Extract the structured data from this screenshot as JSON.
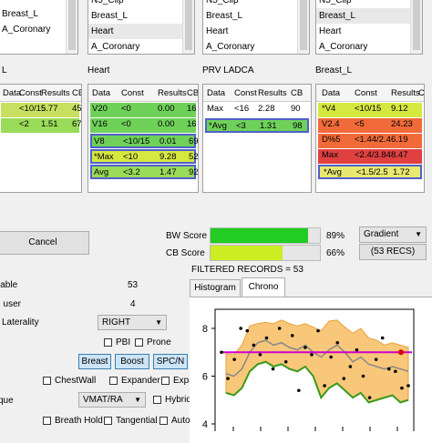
{
  "structure_lists": [
    {
      "items": [
        "Breast_L",
        "A_Coronary"
      ],
      "selected": -1
    },
    {
      "items": [
        "N5_Clip",
        "Breast_L",
        "Heart",
        "A_Coronary"
      ],
      "selected": 2
    },
    {
      "items": [
        "N5_Clip",
        "Breast_L",
        "Heart",
        "A_Coronary"
      ],
      "selected": -1
    },
    {
      "items": [
        "N5_Clip",
        "Breast_L",
        "Heart",
        "A_Coronary"
      ],
      "selected": 1
    }
  ],
  "panels": [
    {
      "title": "L",
      "headers": [
        "Data",
        "Const",
        "Results",
        "CB"
      ],
      "rows": [
        {
          "data": "",
          "const": "<10/15",
          "results": "5.77",
          "cb": "45",
          "color": "#c8e060"
        },
        {
          "data": "",
          "const": "<2",
          "results": "1.51",
          "cb": "67",
          "color": "#9adb5a"
        }
      ]
    },
    {
      "title": "Heart",
      "headers": [
        "Data",
        "Const",
        "Results",
        "CB"
      ],
      "rows": [
        {
          "data": "V20",
          "const": "<0",
          "results": "0.00",
          "cb": "16",
          "color": "#6fd15a"
        },
        {
          "data": "V16",
          "const": "<0",
          "results": "0.00",
          "cb": "16",
          "color": "#6fd15a"
        },
        {
          "data": "V8",
          "const": "<10/15",
          "results": "0.01",
          "cb": "69",
          "color": "#6fd15a"
        },
        {
          "data": "*Max",
          "const": "<10",
          "results": "9.28",
          "cb": "52",
          "color": "#d4e840"
        },
        {
          "data": "Avg",
          "const": "<3.2",
          "results": "1.47",
          "cb": "92",
          "color": "#9adb5a"
        }
      ]
    },
    {
      "title": "PRV LADCA",
      "headers": [
        "Data",
        "Const",
        "Results",
        "CB"
      ],
      "rows": [
        {
          "data": "Max",
          "const": "<16",
          "results": "2.28",
          "cb": "90",
          "color": "#ffffff"
        },
        {
          "data": "*Avg",
          "const": "<3",
          "results": "1.31",
          "cb": "98",
          "color": "#6fd15a"
        }
      ]
    },
    {
      "title": "Breast_L",
      "headers": [
        "Data",
        "Const",
        "Results",
        "CB"
      ],
      "rows": [
        {
          "data": "*V4",
          "const": "<10/15",
          "results": "9.12",
          "cb": "",
          "color": "#d4e840"
        },
        {
          "data": "V2.4",
          "const": "<5",
          "results": "24.23",
          "cb": "",
          "color": "#f06a3a"
        },
        {
          "data": "D%5",
          "const": "<1.44/2.4",
          "results": "6.19",
          "cb": "",
          "color": "#f06a3a"
        },
        {
          "data": "Max",
          "const": "<2.4/3.84",
          "results": "8.47",
          "cb": "",
          "color": "#e04040"
        },
        {
          "data": "*Avg",
          "const": "<1.5/2.5",
          "results": "1.72",
          "cb": "",
          "color": "#e8e870"
        }
      ]
    }
  ],
  "cancel_label": "Cancel",
  "scores": {
    "bw_label": "BW Score",
    "bw_value": "89%",
    "bw_fraction": 0.89,
    "bw_color": "#22cc22",
    "cb_label": "CB Score",
    "cb_value": "66%",
    "cb_fraction": 0.66,
    "cb_color": "#ccee22"
  },
  "color_mode": "Gradient",
  "recs_button": "(53 RECS)",
  "filtered_records": "FILTERED RECORDS = 53",
  "left_form": {
    "available_label": "lable",
    "available_value": "53",
    "user_label": ": user",
    "user_value": "4",
    "laterality_label": "Laterality",
    "laterality_value": "RIGHT",
    "pbi_label": "PBI",
    "prone_label": "Prone",
    "breast_label": "Breast",
    "boost_label": "Boost",
    "spcn_label": "SPC/N",
    "chestwall_label": "ChestWall",
    "expander_label": "Expander",
    "expa_label": "Expa",
    "technique_label": "que",
    "technique_value": "VMAT/RA",
    "hybrid_label": "Hybrid",
    "breathhold_label": "Breath Hold",
    "tangential_label": "Tangential",
    "autop_label": "Autop"
  },
  "tabs": [
    {
      "label": "Histogram",
      "active": false
    },
    {
      "label": "Chrono",
      "active": true
    }
  ],
  "chart_data": {
    "type": "line",
    "yticks": [
      "8",
      "6",
      "4"
    ],
    "ylim": [
      4,
      8.8
    ],
    "threshold": 7.0,
    "series": [
      {
        "key": "upper",
        "values": [
          6.95,
          6.9,
          7.3,
          8.1,
          8.2,
          8.25,
          8.2,
          8.35,
          8.2,
          8.1,
          8.2,
          8.05,
          7.9,
          8.3,
          8.35,
          8.05,
          7.8,
          8.0,
          7.6,
          7.5,
          7.3,
          7.4,
          7.3,
          7.2
        ]
      },
      {
        "key": "mean",
        "values": [
          6.1,
          6.0,
          6.3,
          7.0,
          7.4,
          7.5,
          7.3,
          7.4,
          7.2,
          7.1,
          7.3,
          7.0,
          6.8,
          7.1,
          7.3,
          7.0,
          6.6,
          6.8,
          6.5,
          6.4,
          6.3,
          6.4,
          6.3,
          6.2
        ]
      },
      {
        "key": "lower",
        "values": [
          5.3,
          5.2,
          5.5,
          6.2,
          6.5,
          6.6,
          6.4,
          6.5,
          6.3,
          6.2,
          6.4,
          6.0,
          5.1,
          5.5,
          5.7,
          5.4,
          5.1,
          5.3,
          4.9,
          5.0,
          5.1,
          5.2,
          4.9,
          5.0
        ]
      }
    ],
    "points": [
      7.0,
      5.9,
      6.7,
      8.0,
      7.9,
      7.3,
      6.9,
      7.6,
      6.3,
      8.0,
      6.6,
      7.7,
      5.4,
      7.2,
      6.9,
      7.9,
      5.6,
      6.8,
      7.4,
      5.9,
      6.4,
      7.1,
      6.0,
      5.1,
      6.7,
      7.6,
      6.3,
      6.2,
      5.5,
      5.6
    ],
    "colors": {
      "band": "#f9c77a",
      "band_edge": "#e8a23a",
      "mean": "#888888",
      "lower": "#3a9a1a",
      "threshold": "#cc00cc",
      "points": "#000000",
      "marker": "#dd0000"
    }
  }
}
